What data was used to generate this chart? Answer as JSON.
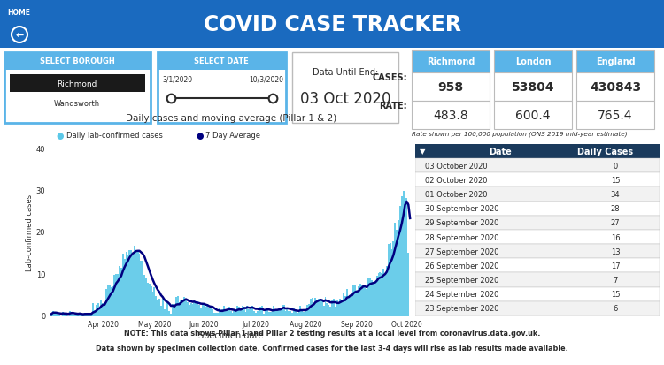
{
  "title": "COVID CASE TRACKER",
  "home_label": "HOME",
  "select_borough": "SELECT BOROUGH",
  "select_date": "SELECT DATE",
  "data_until_end": "Data Until End:",
  "date_display": "03 Oct 2020",
  "date_range_start": "3/1/2020",
  "date_range_end": "10/3/2020",
  "boroughs": [
    "Richmond",
    "Wandsworth"
  ],
  "selected_borough": "Richmond",
  "cases_label": "CASES:",
  "rate_label": "RATE:",
  "col_headers": [
    "Richmond",
    "London",
    "England"
  ],
  "cases_values": [
    "958",
    "53804",
    "430843"
  ],
  "rate_values": [
    "483.8",
    "600.4",
    "765.4"
  ],
  "rate_note": "Rate shown per 100,000 population (ONS 2019 mid-year estimate)",
  "chart_title": "Daily cases and moving average (Pillar 1 & 2)",
  "legend_bar": "Daily lab-confirmed cases",
  "legend_line": "7 Day Average",
  "xlabel": "Specimen date",
  "ylabel": "Lab-confirmed cases",
  "ylim": [
    0,
    40
  ],
  "table_headers": [
    "Date",
    "Daily Cases"
  ],
  "table_data": [
    [
      "03 October 2020",
      "0"
    ],
    [
      "02 October 2020",
      "15"
    ],
    [
      "01 October 2020",
      "34"
    ],
    [
      "30 September 2020",
      "28"
    ],
    [
      "29 September 2020",
      "27"
    ],
    [
      "28 September 2020",
      "16"
    ],
    [
      "27 September 2020",
      "13"
    ],
    [
      "26 September 2020",
      "17"
    ],
    [
      "25 September 2020",
      "7"
    ],
    [
      "24 September 2020",
      "15"
    ],
    [
      "23 September 2020",
      "6"
    ]
  ],
  "footnote1_pre": "NOTE: This data shows Pillar 1 and Pillar 2 testing results at a local level from ",
  "footnote1_link": "coronavirus.data.gov.uk",
  "footnote1_post": ".",
  "footnote2": "Data shown by specimen collection date. Confirmed cases for the last 3-4 days will rise as lab results made available.",
  "header_bg": "#1a6abf",
  "select_bg": "#5ab4e8",
  "white": "#ffffff",
  "light_gray": "#f2f2f2",
  "medium_gray": "#e0e0e0",
  "dark_gray": "#2a2a2a",
  "table_header_bg": "#1a3a5c",
  "bar_color": "#5bc8e8",
  "line_color": "#000080",
  "border_color": "#bbbbbb",
  "black_box_bg": "#1a1a1a",
  "bar_yticks": [
    0,
    10,
    20,
    30,
    40
  ],
  "bar_xlabels": [
    "Apr 2020",
    "May 2020",
    "Jun 2020",
    "Jul 2020",
    "Aug 2020",
    "Sep 2020",
    "Oct 2020"
  ]
}
